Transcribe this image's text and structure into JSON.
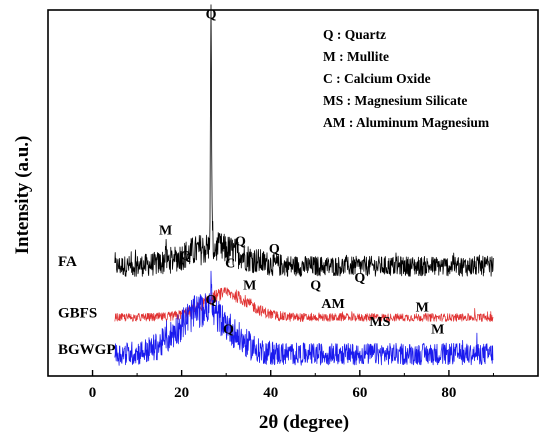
{
  "chart_data": {
    "type": "line",
    "title": "",
    "xlabel": "2θ (degree)",
    "ylabel": "Intensity (a.u.)",
    "xlim": [
      -10,
      100
    ],
    "x_ticks": [
      0,
      20,
      40,
      60,
      80
    ],
    "y_ticks_shown": false,
    "grid": false,
    "legend_placement": "top-right",
    "legend_entries": [
      "Q : Quartz",
      "M : Mullite",
      "C : Calcium Oxide",
      "MS : Magnesium Silicate",
      "AM : Aluminum Magnesium"
    ],
    "series": [
      {
        "name": "FA",
        "color": "#000000",
        "x_range": [
          5,
          90
        ],
        "baseline_intensity": 0.3,
        "profile": "flat with amorphous hump",
        "peaks": [
          {
            "x": 16.4,
            "label": "M",
            "height": 0.37
          },
          {
            "x": 20.9,
            "label": "Q",
            "height": 0.3
          },
          {
            "x": 26.6,
            "label": "Q",
            "height": 0.96
          },
          {
            "x": 30.9,
            "label": "C",
            "height": 0.28
          },
          {
            "x": 33.2,
            "label": "Q",
            "height": 0.34
          },
          {
            "x": 35.3,
            "label": "M",
            "height": 0.22
          },
          {
            "x": 40.8,
            "label": "Q",
            "height": 0.32
          },
          {
            "x": 50.1,
            "label": "Q",
            "height": 0.22
          },
          {
            "x": 54.0,
            "label": "AM",
            "height": 0.17
          },
          {
            "x": 60.0,
            "label": "Q",
            "height": 0.24
          },
          {
            "x": 64.5,
            "label": "MS",
            "height": 0.12
          },
          {
            "x": 74.0,
            "label": "M",
            "height": 0.16
          },
          {
            "x": 77.5,
            "label": "M",
            "height": 0.1
          }
        ]
      },
      {
        "name": "GBFS",
        "color": "#e03030",
        "x_range": [
          5,
          90
        ],
        "baseline_intensity": 0.16,
        "profile": "broad amorphous hump centered near 30",
        "peaks": []
      },
      {
        "name": "BGWGP",
        "color": "#1a1aee",
        "x_range": [
          5,
          90
        ],
        "baseline_intensity": 0.06,
        "profile": "broad amorphous hump centered near 25",
        "peaks": [
          {
            "x": 26.6,
            "label": "Q",
            "height": 0.18
          },
          {
            "x": 30.5,
            "label": "Q",
            "height": 0.1
          }
        ]
      }
    ]
  }
}
